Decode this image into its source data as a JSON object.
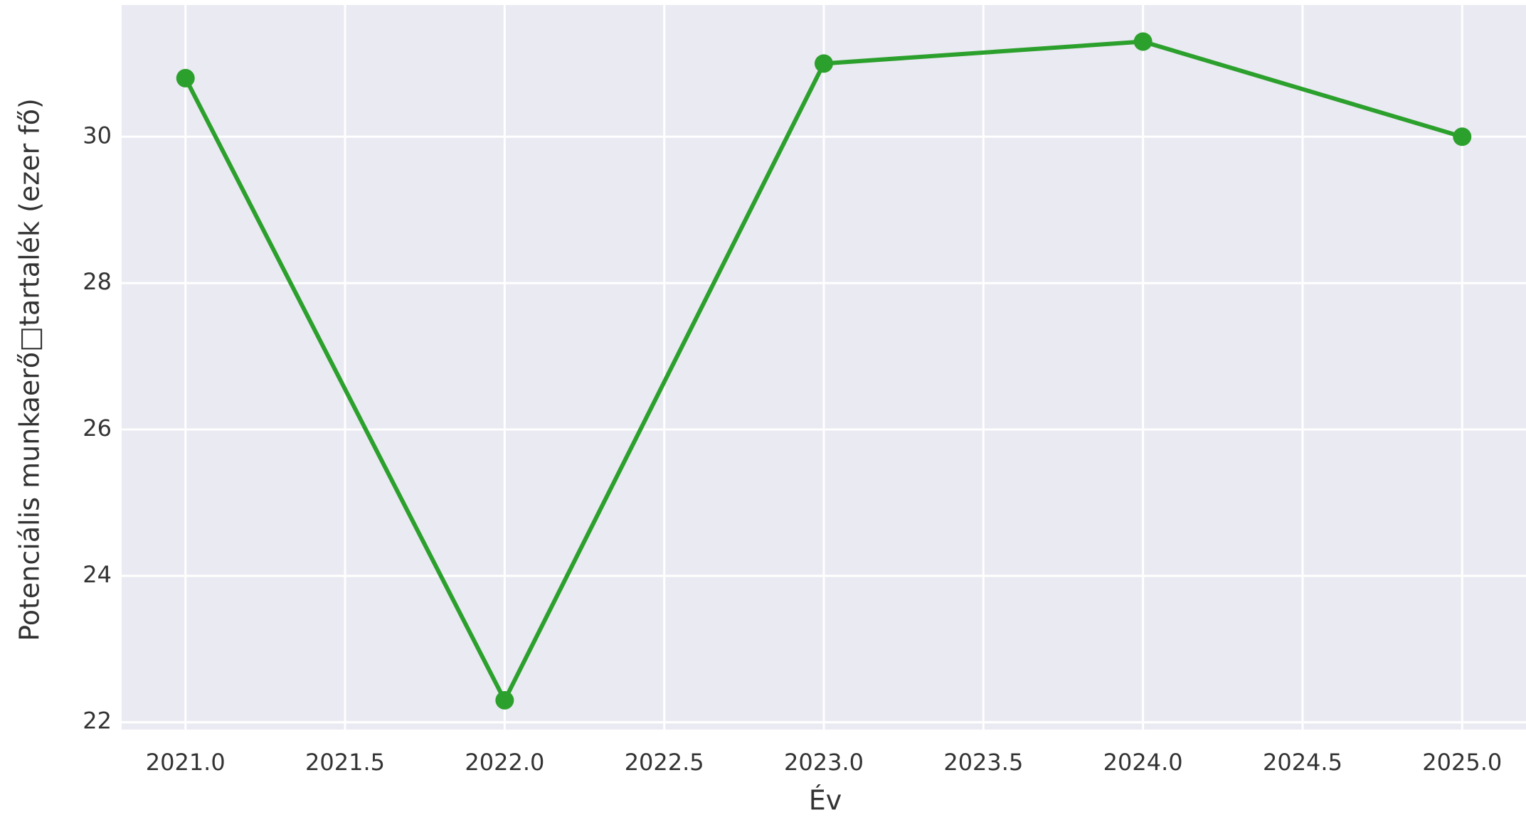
{
  "chart_data": {
    "type": "line",
    "x_label": "Év",
    "y_label": "Potenciális munkaerő□tartalék (ezer fő)",
    "x": [
      2021,
      2022,
      2023,
      2024,
      2025
    ],
    "series": [
      {
        "color": "#2ca02c",
        "values": [
          30.8,
          22.3,
          31.0,
          31.3,
          30.0
        ]
      }
    ],
    "xlim": [
      2020.8,
      2025.2
    ],
    "ylim": [
      21.9,
      31.8
    ],
    "xticks": [
      {
        "value": 2021,
        "label": "2021.0"
      },
      {
        "value": 2021.5,
        "label": "2021.5"
      },
      {
        "value": 2022,
        "label": "2022.0"
      },
      {
        "value": 2022.5,
        "label": "2022.5"
      },
      {
        "value": 2023,
        "label": "2023.0"
      },
      {
        "value": 2023.5,
        "label": "2023.5"
      },
      {
        "value": 2024,
        "label": "2024.0"
      },
      {
        "value": 2024.5,
        "label": "2024.5"
      },
      {
        "value": 2025,
        "label": "2025.0"
      }
    ],
    "yticks": [
      22,
      24,
      26,
      28,
      30
    ],
    "grid": true
  }
}
